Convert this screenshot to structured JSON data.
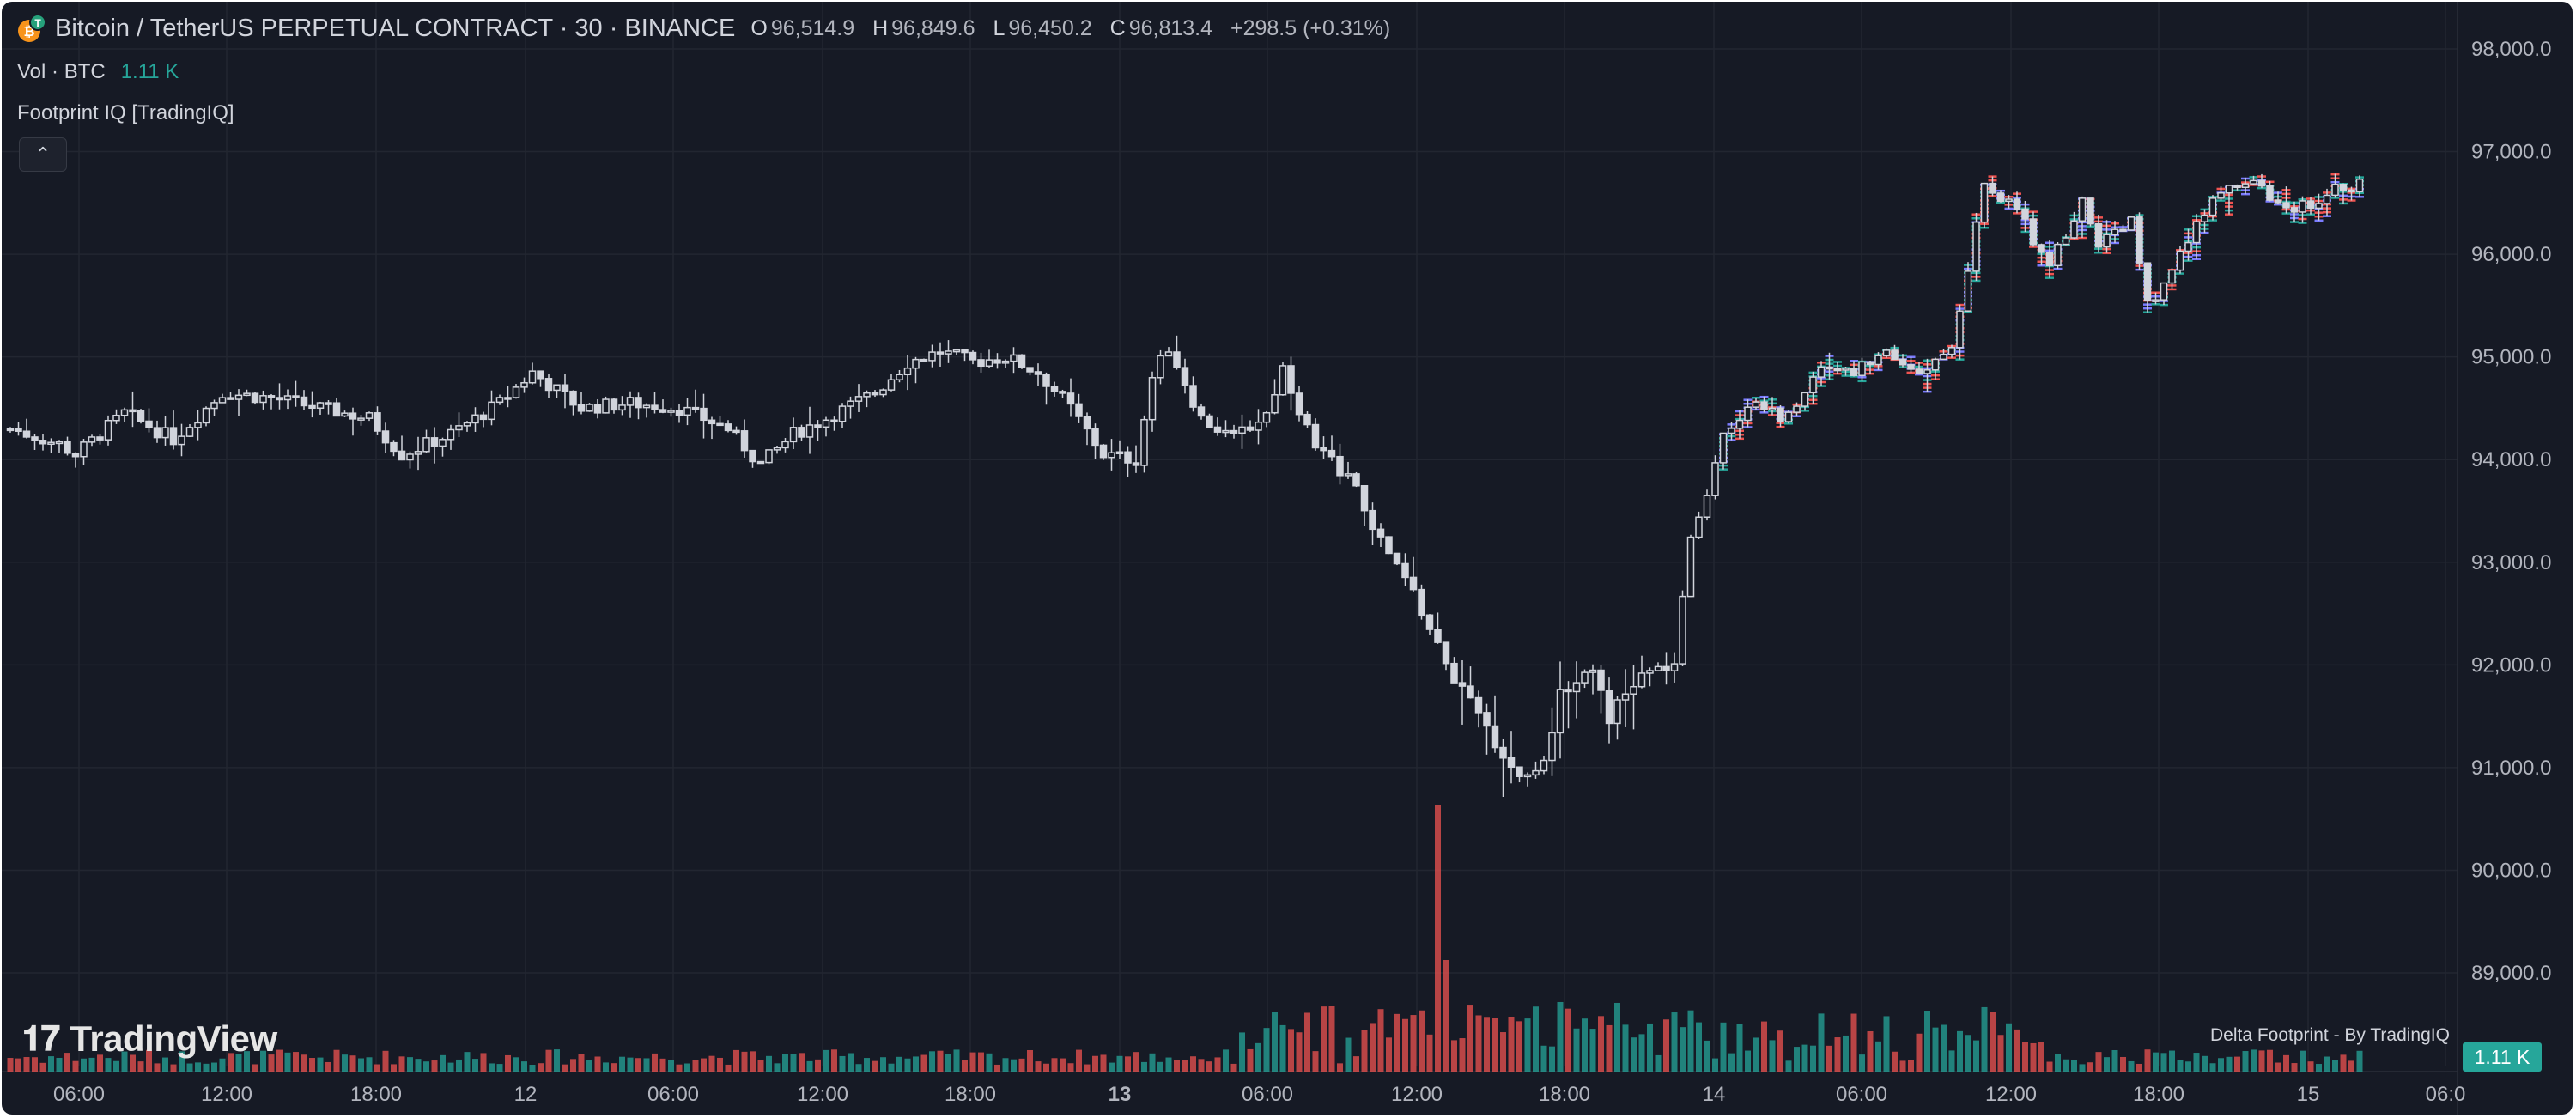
{
  "header": {
    "symbol_title": "Bitcoin / TetherUS PERPETUAL CONTRACT · 30 · BINANCE",
    "ohlc": {
      "o_label": "O",
      "o_value": "96,514.9",
      "h_label": "H",
      "h_value": "96,849.6",
      "l_label": "L",
      "l_value": "96,450.2",
      "c_label": "C",
      "c_value": "96,813.4",
      "change": "+298.5 (+0.31%)"
    }
  },
  "volume_legend": {
    "label": "Vol · BTC",
    "value": "1.11 K"
  },
  "indicator": {
    "label": "Footprint IQ [TradingIQ]"
  },
  "collapse_button": {
    "glyph": "⌃"
  },
  "branding": {
    "logo_text": "TradingView",
    "footprint_label": "Delta Footprint - By TradingIQ"
  },
  "volume_tag": "1.11 K",
  "colors": {
    "background": "#161a25",
    "up": "#26a69a",
    "down": "#ef5350",
    "candle": "#d1d4dc",
    "grid": "#222631",
    "footprint_a": "#7b7cff",
    "footprint_b": "#26a69a",
    "footprint_c": "#ef5350"
  },
  "chart_data": {
    "type": "candlestick",
    "price_axis": {
      "ticks": [
        "98,000.0",
        "97,000.0",
        "96,000.0",
        "95,000.0",
        "94,000.0",
        "93,000.0",
        "92,000.0",
        "91,000.0",
        "90,000.0",
        "89,000.0"
      ],
      "ylim": [
        88100,
        98300
      ]
    },
    "time_axis": {
      "ticks": [
        "06:00",
        "12:00",
        "18:00",
        "12",
        "06:00",
        "12:00",
        "18:00",
        "13",
        "06:00",
        "12:00",
        "18:00",
        "14",
        "06:00",
        "12:00",
        "18:00",
        "15",
        "06:0"
      ],
      "bold": [
        "13"
      ]
    },
    "grid": true,
    "candle_anchors": [
      [
        0,
        94300
      ],
      [
        6,
        94150
      ],
      [
        8,
        94050
      ],
      [
        14,
        94450
      ],
      [
        20,
        94200
      ],
      [
        26,
        94650
      ],
      [
        32,
        94600
      ],
      [
        38,
        94500
      ],
      [
        44,
        94400
      ],
      [
        48,
        94050
      ],
      [
        54,
        94250
      ],
      [
        60,
        94550
      ],
      [
        64,
        94850
      ],
      [
        70,
        94500
      ],
      [
        76,
        94550
      ],
      [
        82,
        94500
      ],
      [
        88,
        94300
      ],
      [
        92,
        93950
      ],
      [
        96,
        94250
      ],
      [
        100,
        94400
      ],
      [
        106,
        94650
      ],
      [
        110,
        94950
      ],
      [
        114,
        95050
      ],
      [
        118,
        94950
      ],
      [
        122,
        95000
      ],
      [
        126,
        94850
      ],
      [
        130,
        94500
      ],
      [
        134,
        94050
      ],
      [
        138,
        94000
      ],
      [
        140,
        94800
      ],
      [
        142,
        95100
      ],
      [
        146,
        94400
      ],
      [
        150,
        94200
      ],
      [
        154,
        94450
      ],
      [
        156,
        94900
      ],
      [
        160,
        94100
      ],
      [
        164,
        93850
      ],
      [
        168,
        93200
      ],
      [
        172,
        92700
      ],
      [
        176,
        92000
      ],
      [
        180,
        91500
      ],
      [
        184,
        91000
      ],
      [
        186,
        90900
      ],
      [
        188,
        91100
      ],
      [
        190,
        91700
      ],
      [
        194,
        92000
      ],
      [
        196,
        91500
      ],
      [
        200,
        91900
      ],
      [
        204,
        92000
      ],
      [
        206,
        93200
      ],
      [
        208,
        93700
      ],
      [
        210,
        94300
      ],
      [
        214,
        94550
      ],
      [
        218,
        94400
      ],
      [
        222,
        94950
      ],
      [
        226,
        94850
      ],
      [
        230,
        95050
      ],
      [
        234,
        94800
      ],
      [
        238,
        95050
      ],
      [
        240,
        95900
      ],
      [
        242,
        96700
      ],
      [
        246,
        96400
      ],
      [
        250,
        95900
      ],
      [
        254,
        96500
      ],
      [
        256,
        96100
      ],
      [
        260,
        96300
      ],
      [
        262,
        95500
      ],
      [
        266,
        96000
      ],
      [
        270,
        96500
      ],
      [
        274,
        96750
      ],
      [
        278,
        96450
      ],
      [
        282,
        96500
      ],
      [
        286,
        96650
      ],
      [
        288,
        96700
      ]
    ],
    "footprint_start_index": 210,
    "volume_series": {
      "name": "Vol · BTC",
      "last": "1.11 K"
    }
  }
}
